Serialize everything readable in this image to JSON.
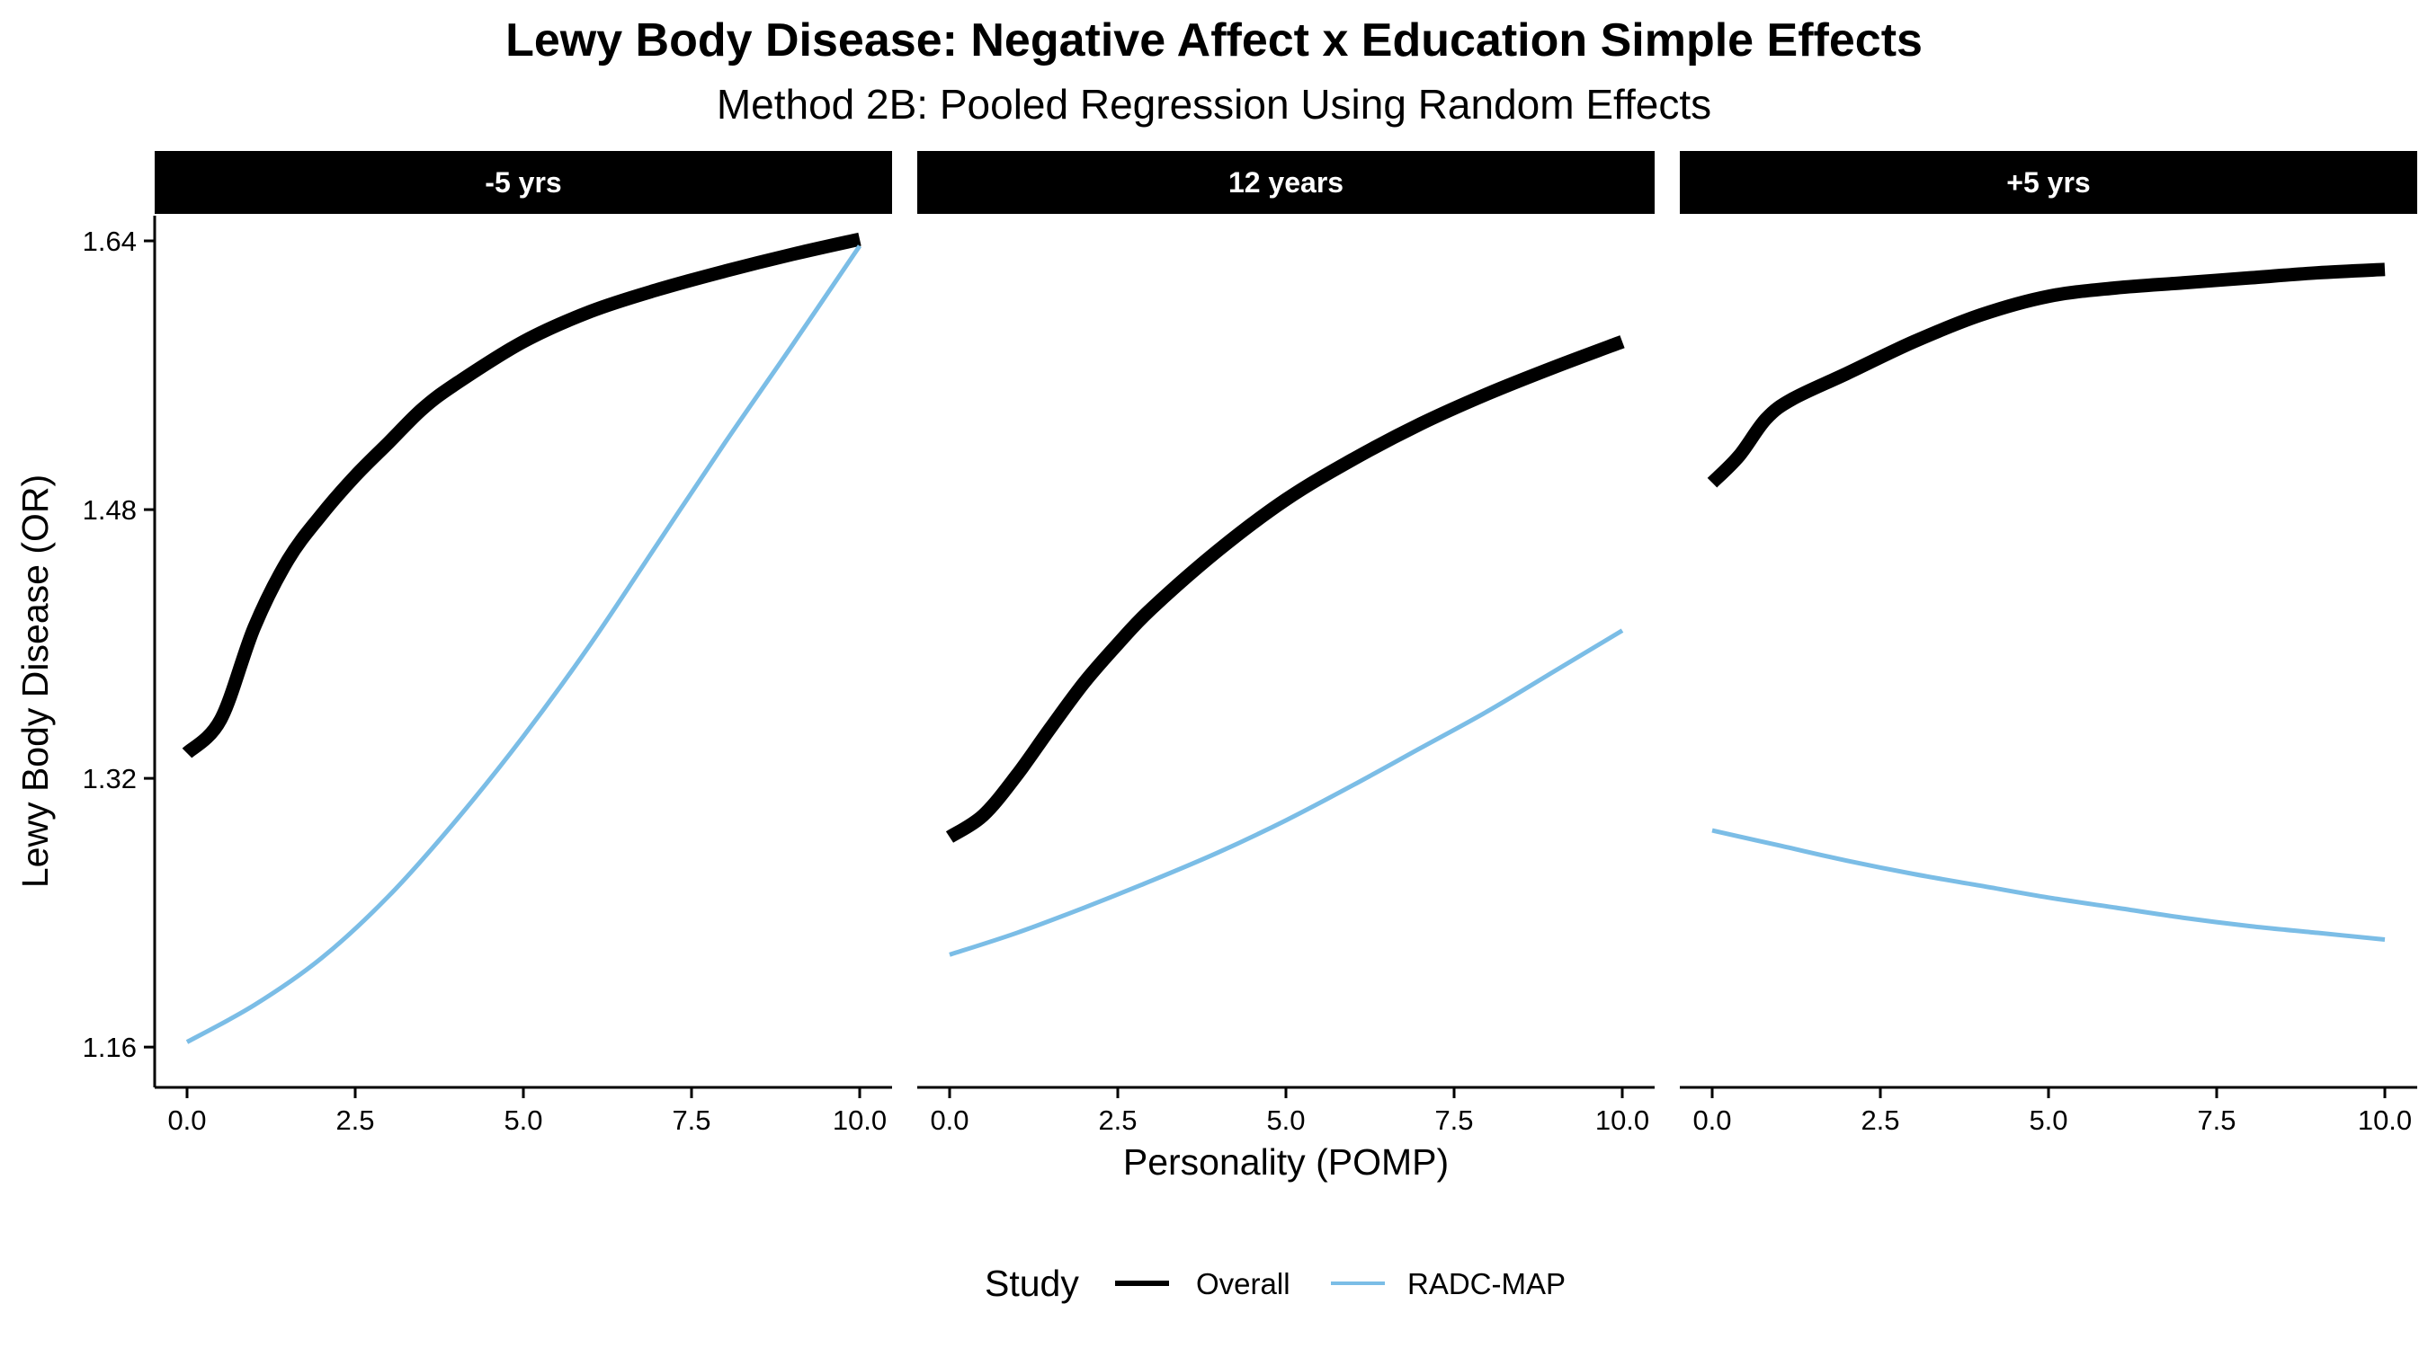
{
  "chart_data": {
    "type": "line",
    "title": "Lewy Body Disease: Negative Affect x Education Simple Effects",
    "subtitle": "Method 2B: Pooled Regression Using Random Effects",
    "xlabel": "Personality (POMP)",
    "ylabel": "Lewy Body Disease (OR)",
    "xlim": [
      0,
      10
    ],
    "ylim": [
      1.136,
      1.655
    ],
    "x_ticks": [
      0,
      2.5,
      5,
      7.5,
      10
    ],
    "x_tick_labels": [
      "0.0",
      "2.5",
      "5.0",
      "7.5",
      "10.0"
    ],
    "y_ticks": [
      1.16,
      1.32,
      1.48,
      1.64
    ],
    "y_tick_labels": [
      "1.16",
      "1.32",
      "1.48",
      "1.64"
    ],
    "grid": false,
    "legend": {
      "title": "Study",
      "position": "bottom",
      "entries": [
        "Overall",
        "RADC-MAP"
      ]
    },
    "colors": {
      "Overall": "#000000",
      "RADC-MAP": "#7bbde6"
    },
    "panels": [
      {
        "label": "-5 yrs",
        "series": [
          {
            "name": "Overall",
            "x": [
              0,
              0.5,
              1,
              1.5,
              2,
              2.5,
              3,
              3.5,
              4,
              5,
              6,
              7,
              8,
              9,
              10
            ],
            "y": [
              1.335,
              1.355,
              1.41,
              1.45,
              1.477,
              1.5,
              1.52,
              1.54,
              1.555,
              1.58,
              1.598,
              1.611,
              1.622,
              1.632,
              1.641
            ]
          },
          {
            "name": "RADC-MAP",
            "x": [
              0,
              1,
              2,
              3,
              4,
              5,
              6,
              7,
              8,
              9,
              10
            ],
            "y": [
              1.163,
              1.185,
              1.213,
              1.25,
              1.295,
              1.345,
              1.4,
              1.46,
              1.52,
              1.578,
              1.637
            ]
          }
        ]
      },
      {
        "label": "12 years",
        "series": [
          {
            "name": "Overall",
            "x": [
              0,
              0.5,
              1,
              1.5,
              2,
              2.5,
              3,
              4,
              5,
              6,
              7,
              8,
              9,
              10
            ],
            "y": [
              1.285,
              1.298,
              1.322,
              1.35,
              1.377,
              1.4,
              1.421,
              1.456,
              1.486,
              1.51,
              1.531,
              1.549,
              1.565,
              1.58
            ]
          },
          {
            "name": "RADC-MAP",
            "x": [
              0,
              1,
              2,
              3,
              4,
              5,
              6,
              7,
              8,
              9,
              10
            ],
            "y": [
              1.215,
              1.228,
              1.243,
              1.259,
              1.276,
              1.295,
              1.316,
              1.338,
              1.36,
              1.384,
              1.408
            ]
          }
        ]
      },
      {
        "label": "+5 yrs",
        "series": [
          {
            "name": "Overall",
            "x": [
              0,
              0.4,
              0.8,
              1.2,
              2,
              3,
              4,
              5,
              6,
              7,
              8,
              9,
              10
            ],
            "y": [
              1.496,
              1.512,
              1.534,
              1.546,
              1.561,
              1.58,
              1.596,
              1.607,
              1.612,
              1.615,
              1.618,
              1.621,
              1.623
            ]
          },
          {
            "name": "RADC-MAP",
            "x": [
              0,
              1,
              2,
              3,
              4,
              5,
              6,
              7,
              8,
              9,
              10
            ],
            "y": [
              1.289,
              1.28,
              1.271,
              1.263,
              1.256,
              1.249,
              1.243,
              1.237,
              1.232,
              1.228,
              1.224
            ]
          }
        ]
      }
    ]
  }
}
